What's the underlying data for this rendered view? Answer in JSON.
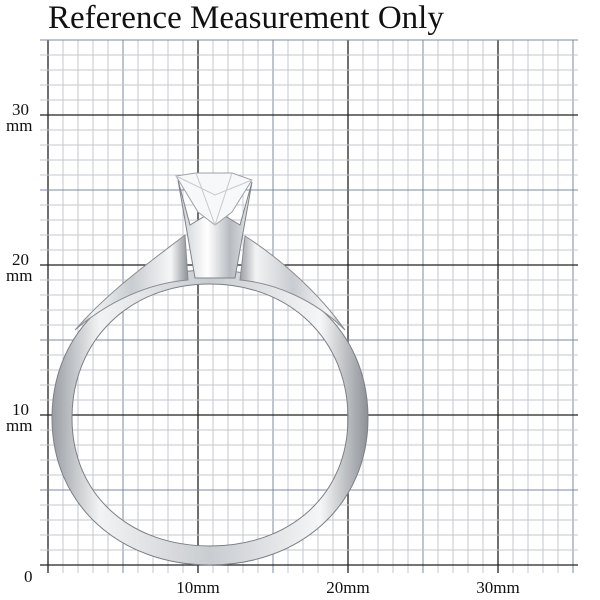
{
  "title": "Reference Measurement Only",
  "y_labels": [
    {
      "number": "30",
      "unit": "mm"
    },
    {
      "number": "20",
      "unit": "mm"
    },
    {
      "number": "10",
      "unit": "mm"
    }
  ],
  "origin": "0",
  "x_labels": [
    "10mm",
    "20mm",
    "30mm"
  ]
}
